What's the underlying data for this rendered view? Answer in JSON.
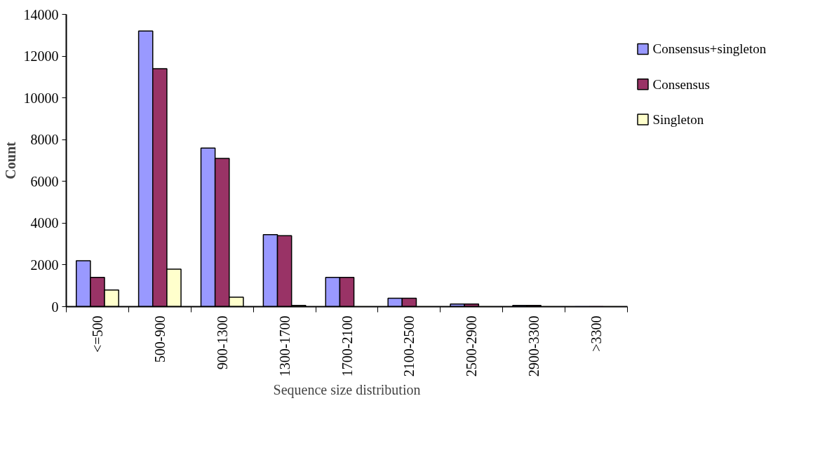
{
  "chart_data": {
    "type": "bar",
    "xlabel": "Sequence size distribution",
    "ylabel": "Count",
    "categories": [
      "<=500",
      "500-900",
      "900-1300",
      "1300-1700",
      "1700-2100",
      "2100-2500",
      "2500-2900",
      "2900-3300",
      ">3300"
    ],
    "series": [
      {
        "name": "Consensus+singleton",
        "color": "#9999ff",
        "values": [
          2200,
          13200,
          7600,
          3450,
          1400,
          400,
          130,
          60,
          0
        ]
      },
      {
        "name": "Consensus",
        "color": "#993366",
        "values": [
          1400,
          11400,
          7100,
          3400,
          1400,
          400,
          130,
          60,
          0
        ]
      },
      {
        "name": "Singleton",
        "color": "#ffffcc",
        "values": [
          800,
          1800,
          450,
          60,
          0,
          0,
          0,
          0,
          0
        ]
      }
    ],
    "ylim": [
      0,
      14000
    ],
    "yticks": [
      0,
      2000,
      4000,
      6000,
      8000,
      10000,
      12000,
      14000
    ],
    "grid": false,
    "legend": "right"
  }
}
